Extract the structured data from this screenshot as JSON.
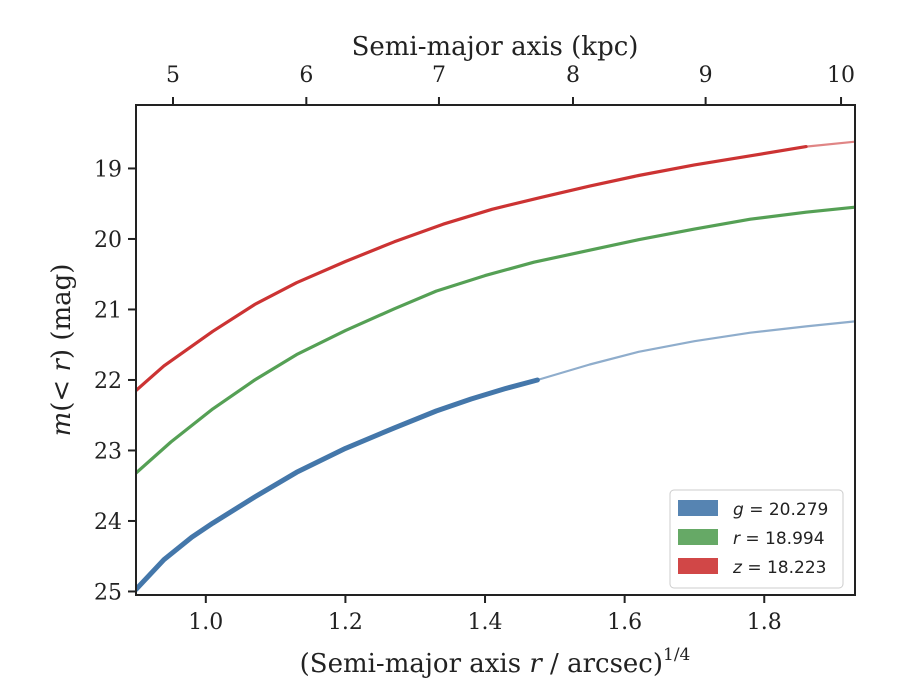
{
  "chart_data": {
    "type": "line",
    "xlabel_parts": [
      "(Semi-major axis ",
      "r",
      " / arcsec)",
      "1/4"
    ],
    "ylabel_parts": [
      "m",
      "(< ",
      "r",
      ") (mag)"
    ],
    "top_xlabel": "Semi-major axis (kpc)",
    "xlim": [
      0.9,
      1.93
    ],
    "ylim": [
      25.05,
      18.1
    ],
    "y_inverted": true,
    "x_ticks": [
      "1.0",
      "1.2",
      "1.4",
      "1.6",
      "1.8"
    ],
    "x_tick_values": [
      1.0,
      1.2,
      1.4,
      1.6,
      1.8
    ],
    "y_ticks": [
      "19",
      "20",
      "21",
      "22",
      "23",
      "24",
      "25"
    ],
    "y_tick_values": [
      19,
      20,
      21,
      22,
      23,
      24,
      25
    ],
    "top_ticks": [
      "5",
      "6",
      "7",
      "8",
      "9",
      "10"
    ],
    "top_tick_positions": [
      0.953,
      1.144,
      1.334,
      1.526,
      1.716,
      1.91
    ],
    "grid": false,
    "legend_position": "lower-right",
    "series": [
      {
        "name": "g = 20.279",
        "band": "g",
        "value": "20.279",
        "color": "#4477aa",
        "measured": {
          "x": [
            0.9,
            0.94,
            0.98,
            1.01,
            1.07,
            1.13,
            1.2,
            1.27,
            1.33,
            1.38,
            1.43,
            1.475
          ],
          "y": [
            24.97,
            24.55,
            24.23,
            24.03,
            23.66,
            23.31,
            22.97,
            22.68,
            22.44,
            22.27,
            22.12,
            22.0
          ]
        },
        "extrapolated": {
          "x": [
            1.475,
            1.55,
            1.62,
            1.7,
            1.78,
            1.86,
            1.93
          ],
          "y": [
            22.0,
            21.78,
            21.6,
            21.45,
            21.33,
            21.24,
            21.17
          ]
        }
      },
      {
        "name": "r = 18.994",
        "band": "r",
        "value": "18.994",
        "color": "#55a055",
        "measured": {
          "x": [
            0.9,
            0.95,
            1.01,
            1.07,
            1.13,
            1.2,
            1.27,
            1.33,
            1.4,
            1.47,
            1.55,
            1.62,
            1.7,
            1.78,
            1.86,
            1.93
          ],
          "y": [
            23.32,
            22.88,
            22.41,
            22.0,
            21.64,
            21.3,
            20.99,
            20.74,
            20.52,
            20.33,
            20.16,
            20.01,
            19.86,
            19.72,
            19.62,
            19.55
          ]
        }
      },
      {
        "name": "z = 18.223",
        "band": "z",
        "value": "18.223",
        "color": "#cc3333",
        "measured": {
          "x": [
            0.9,
            0.94,
            1.01,
            1.07,
            1.13,
            1.2,
            1.27,
            1.34,
            1.41,
            1.48,
            1.55,
            1.62,
            1.7,
            1.78,
            1.86
          ],
          "y": [
            22.15,
            21.8,
            21.31,
            20.93,
            20.62,
            20.32,
            20.04,
            19.79,
            19.58,
            19.41,
            19.25,
            19.1,
            18.95,
            18.82,
            18.69
          ]
        },
        "extrapolated": {
          "x": [
            1.86,
            1.93
          ],
          "y": [
            18.69,
            18.62
          ]
        }
      }
    ]
  }
}
